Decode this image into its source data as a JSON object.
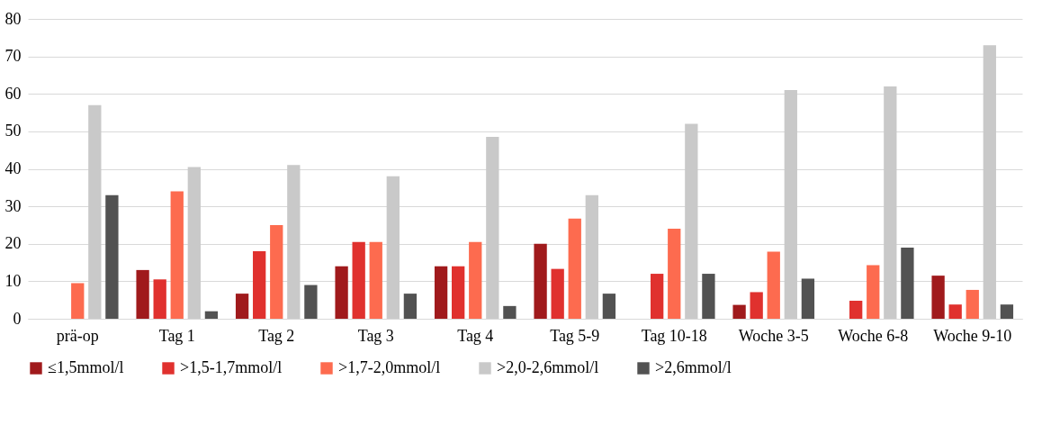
{
  "chart_data": {
    "type": "bar",
    "categories": [
      "prä-op",
      "Tag 1",
      "Tag 2",
      "Tag 3",
      "Tag 4",
      "Tag 5-9",
      "Tag 10-18",
      "Woche 3-5",
      "Woche 6-8",
      "Woche 9-10"
    ],
    "series": [
      {
        "name": "≤1,5mmol/l",
        "color": "#a01a1c",
        "values": [
          0,
          13,
          6.7,
          14,
          14,
          20,
          0,
          3.7,
          0,
          11.5
        ]
      },
      {
        "name": ">1,5-1,7mmol/l",
        "color": "#e0312e",
        "values": [
          0,
          10.5,
          18,
          20.5,
          14,
          13.3,
          12,
          7.1,
          4.8,
          3.8
        ]
      },
      {
        "name": ">1,7-2,0mmol/l",
        "color": "#fd6b4f",
        "values": [
          9.5,
          34,
          25,
          20.5,
          20.5,
          26.7,
          24,
          17.9,
          14.3,
          7.7
        ]
      },
      {
        "name": ">2,0-2,6mmol/l",
        "color": "#c9c9c9",
        "values": [
          57,
          40.5,
          41,
          38,
          48.5,
          33,
          52,
          61,
          62,
          73
        ]
      },
      {
        "name": ">2,6mmol/l",
        "color": "#525252",
        "values": [
          33,
          2,
          9,
          6.7,
          3.4,
          6.7,
          12,
          10.7,
          19,
          3.8
        ]
      }
    ],
    "ylim": [
      0,
      80
    ],
    "yticks": [
      0,
      10,
      20,
      30,
      40,
      50,
      60,
      70,
      80
    ],
    "grid": "y",
    "legend": "bottom"
  }
}
